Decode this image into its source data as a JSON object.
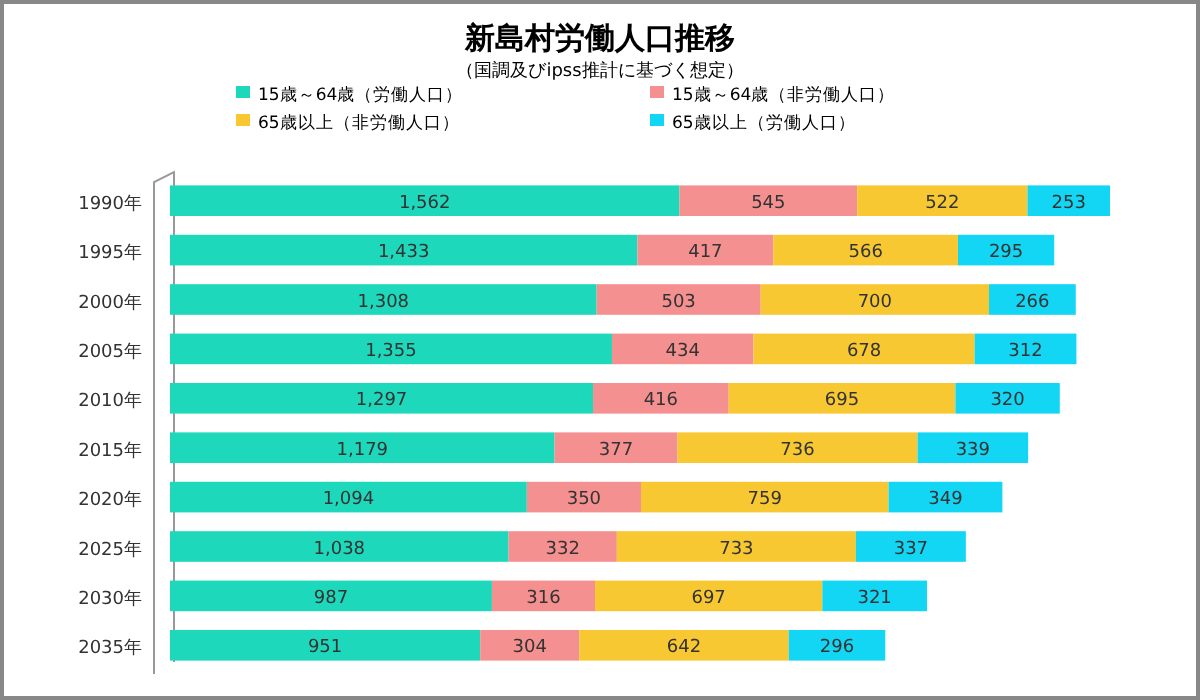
{
  "chart_data": {
    "type": "bar",
    "orientation": "horizontal",
    "stacked": true,
    "title": "新島村労働人口推移",
    "subtitle": "（国調及びipss推計に基づく想定）",
    "categories": [
      "1990年",
      "1995年",
      "2000年",
      "2005年",
      "2010年",
      "2015年",
      "2020年",
      "2025年",
      "2030年",
      "2035年"
    ],
    "series": [
      {
        "name": "15歳～64歳（労働人口）",
        "color": "#1ed8bc",
        "values": [
          1562,
          1433,
          1308,
          1355,
          1297,
          1179,
          1094,
          1038,
          987,
          951
        ],
        "value_labels": [
          "1,562",
          "1,433",
          "1,308",
          "1,355",
          "1,297",
          "1,179",
          "1,094",
          "1,038",
          "987",
          "951"
        ]
      },
      {
        "name": "15歳～64歳（非労働人口）",
        "color": "#f49090",
        "values": [
          545,
          417,
          503,
          434,
          416,
          377,
          350,
          332,
          316,
          304
        ]
      },
      {
        "name": "65歳以上（非労働人口）",
        "color": "#f8c832",
        "values": [
          522,
          566,
          700,
          678,
          695,
          736,
          759,
          733,
          697,
          642
        ]
      },
      {
        "name": "65歳以上（労働人口）",
        "color": "#12d6f4",
        "values": [
          253,
          295,
          266,
          312,
          320,
          339,
          349,
          337,
          321,
          296
        ]
      }
    ],
    "data_labels": true,
    "legend": "top"
  }
}
